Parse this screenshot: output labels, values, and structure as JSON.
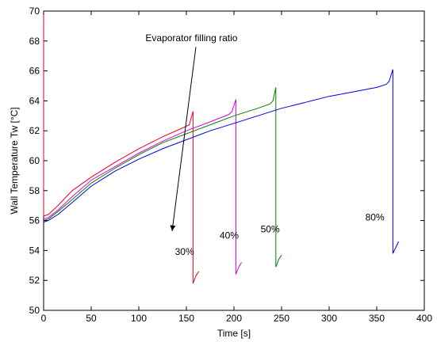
{
  "chart_data": {
    "type": "line",
    "title": "",
    "xlabel": "Time [s]",
    "ylabel": "Wall Temperature Tw [°C]",
    "xlim": [
      0,
      400
    ],
    "ylim": [
      50,
      70
    ],
    "xticks": [
      0,
      50,
      100,
      150,
      200,
      250,
      300,
      350,
      400
    ],
    "yticks": [
      50,
      52,
      54,
      56,
      58,
      60,
      62,
      64,
      66,
      68,
      70
    ],
    "grid": false,
    "legend": "none",
    "series": [
      {
        "color": "#e8001c",
        "points": [
          [
            0,
            70
          ],
          [
            0,
            56.3
          ],
          [
            5,
            56.4
          ],
          [
            15,
            57.0
          ],
          [
            30,
            58.0
          ],
          [
            50,
            58.9
          ],
          [
            75,
            59.9
          ],
          [
            100,
            60.8
          ],
          [
            125,
            61.6
          ],
          [
            150,
            62.3
          ],
          [
            153,
            62.4
          ],
          [
            157,
            63.3
          ],
          [
            157,
            51.8
          ],
          [
            160,
            52.3
          ],
          [
            163,
            52.6
          ]
        ]
      },
      {
        "color": "#e000e0",
        "points": [
          [
            0,
            56.1
          ],
          [
            5,
            56.2
          ],
          [
            15,
            56.7
          ],
          [
            30,
            57.6
          ],
          [
            50,
            58.7
          ],
          [
            75,
            59.6
          ],
          [
            100,
            60.5
          ],
          [
            125,
            61.3
          ],
          [
            150,
            62.0
          ],
          [
            175,
            62.6
          ],
          [
            195,
            63.1
          ],
          [
            198,
            63.3
          ],
          [
            202,
            64.1
          ],
          [
            202,
            52.4
          ],
          [
            205,
            52.9
          ],
          [
            208,
            53.2
          ]
        ]
      },
      {
        "color": "#008000",
        "points": [
          [
            0,
            56.0
          ],
          [
            5,
            56.1
          ],
          [
            15,
            56.6
          ],
          [
            30,
            57.4
          ],
          [
            50,
            58.5
          ],
          [
            75,
            59.5
          ],
          [
            100,
            60.4
          ],
          [
            125,
            61.2
          ],
          [
            150,
            61.8
          ],
          [
            175,
            62.4
          ],
          [
            200,
            63.0
          ],
          [
            225,
            63.5
          ],
          [
            238,
            63.8
          ],
          [
            241,
            64.0
          ],
          [
            244,
            64.9
          ],
          [
            244,
            52.9
          ],
          [
            247,
            53.4
          ],
          [
            250,
            53.7
          ]
        ]
      },
      {
        "color": "#0000e0",
        "points": [
          [
            0,
            55.9
          ],
          [
            5,
            56.0
          ],
          [
            15,
            56.4
          ],
          [
            30,
            57.2
          ],
          [
            50,
            58.3
          ],
          [
            75,
            59.3
          ],
          [
            100,
            60.1
          ],
          [
            125,
            60.8
          ],
          [
            150,
            61.4
          ],
          [
            175,
            62.0
          ],
          [
            200,
            62.5
          ],
          [
            225,
            63.0
          ],
          [
            250,
            63.5
          ],
          [
            275,
            63.9
          ],
          [
            300,
            64.3
          ],
          [
            325,
            64.6
          ],
          [
            350,
            64.9
          ],
          [
            360,
            65.1
          ],
          [
            363,
            65.3
          ],
          [
            367,
            66.1
          ],
          [
            367,
            53.8
          ],
          [
            370,
            54.2
          ],
          [
            373,
            54.6
          ]
        ]
      }
    ],
    "annotations": [
      {
        "text": "Evaporator filling ratio",
        "x": 107,
        "y": 68.0
      },
      {
        "text": "30%",
        "x": 138,
        "y": 53.7
      },
      {
        "text": "40%",
        "x": 185,
        "y": 54.8
      },
      {
        "text": "50%",
        "x": 228,
        "y": 55.2
      },
      {
        "text": "80%",
        "x": 338,
        "y": 56.0
      }
    ],
    "arrow": {
      "from": [
        160,
        67.6
      ],
      "to": [
        135,
        55.3
      ]
    }
  }
}
